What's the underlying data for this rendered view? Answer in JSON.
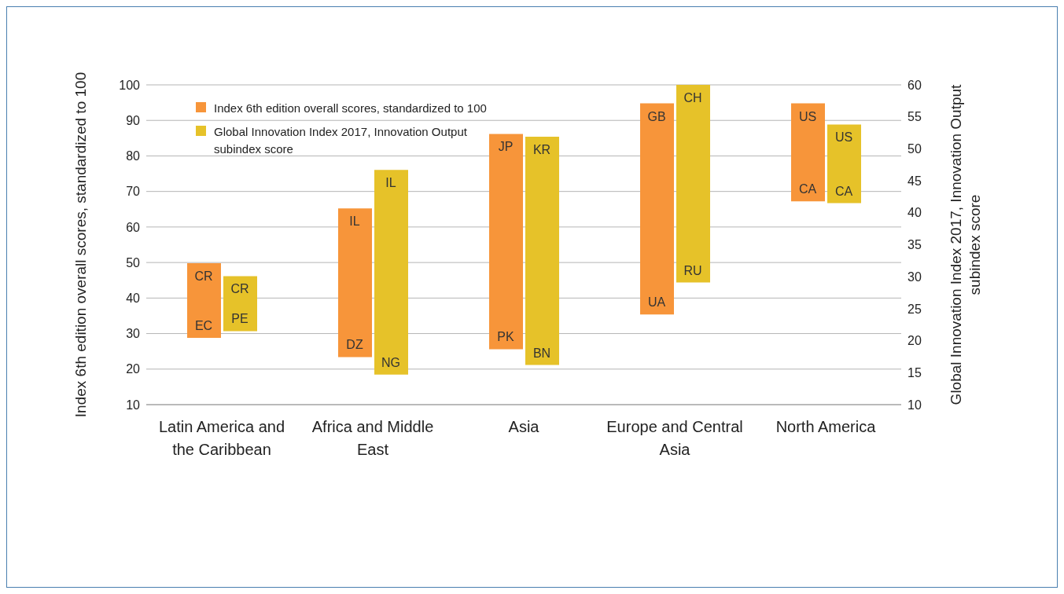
{
  "chart_data": {
    "type": "bar",
    "ylabel": "Index 6th edition overall scores, standardized to 100",
    "y2label": "Global Innovation Index 2017, Innovation Output subindex score",
    "categories": [
      "Latin America and the Caribbean",
      "Africa and Middle East",
      "Asia",
      "Europe and Central Asia",
      "North America"
    ],
    "series": [
      {
        "name": "Index 6th edition overall scores, standardized to 100",
        "color": "#f7953a",
        "base": [
          28.8,
          23.4,
          25.6,
          35.4,
          67.2
        ],
        "values": [
          21.0,
          41.8,
          60.6,
          59.4,
          27.6
        ]
      },
      {
        "name": "Global Innovation Index 2017, Innovation Output subindex score",
        "color": "#e6c229",
        "axis": "y2",
        "base": [
          21.5,
          14.7,
          16.2,
          29.1,
          41.5
        ],
        "values": [
          8.6,
          32.0,
          35.7,
          30.9,
          12.3
        ]
      }
    ],
    "ylim": [
      10,
      100
    ],
    "yticks": [
      10,
      20,
      30,
      40,
      50,
      60,
      70,
      80,
      90,
      100
    ],
    "y2lim": [
      10,
      60
    ],
    "y2ticks": [
      10,
      15,
      20,
      25,
      30,
      35,
      40,
      45,
      50,
      55,
      60
    ],
    "grid": "y",
    "legend": "top left",
    "annotations": [
      "CR",
      "EC",
      "CR",
      "PE",
      "IL",
      "DZ",
      "IL",
      "NG",
      "JP",
      "PK",
      "KR",
      "BN",
      "GB",
      "UA",
      "CH",
      "RU",
      "US",
      "CA",
      "US",
      "CA"
    ]
  }
}
